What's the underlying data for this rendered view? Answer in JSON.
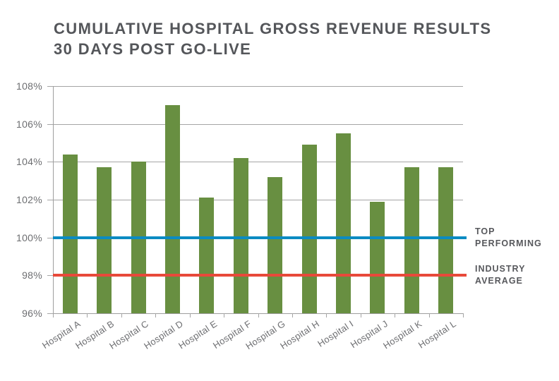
{
  "title": {
    "line1": "CUMULATIVE HOSPITAL GROSS REVENUE RESULTS",
    "line2": "30 DAYS POST GO-LIVE"
  },
  "chart_data": {
    "type": "bar",
    "title": "CUMULATIVE HOSPITAL GROSS REVENUE RESULTS 30 DAYS POST GO-LIVE",
    "categories": [
      "Hospital A",
      "Hospital B",
      "Hospital C",
      "Hospital D",
      "Hospital E",
      "Hospital F",
      "Hospital G",
      "Hospital H",
      "Hospital I",
      "Hospital J",
      "Hospital K",
      "Hospital L"
    ],
    "values": [
      104.4,
      103.7,
      104.0,
      107.0,
      102.1,
      104.2,
      103.2,
      104.9,
      105.5,
      101.9,
      103.7,
      103.7
    ],
    "value_unit": "%",
    "xlabel": "",
    "ylabel": "",
    "ylim": [
      96,
      108
    ],
    "ytick_step": 2,
    "ytick_labels": [
      "96%",
      "98%",
      "100%",
      "102%",
      "104%",
      "106%",
      "108%"
    ],
    "grid": true,
    "bar_color": "#688f41",
    "reference_lines": [
      {
        "value": 100,
        "color": "#0b8bc2",
        "label": "TOP PERFORMING",
        "label_lines": [
          "TOP",
          "PERFORMING"
        ]
      },
      {
        "value": 98,
        "color": "#e8493a",
        "label": "INDUSTRY AVERAGE",
        "label_lines": [
          "INDUSTRY",
          "AVERAGE"
        ]
      }
    ],
    "legend_position": "right-of-lines"
  },
  "colors": {
    "background": "#ffffff",
    "bar": "#688f41",
    "grid": "#a5a5a5",
    "axis": "#9e9e9e",
    "title_text": "#54565a",
    "tick_text": "#6d6e71",
    "ref_label_text": "#57585c",
    "top_performing_line": "#0b8bc2",
    "industry_average_line": "#e8493a"
  }
}
